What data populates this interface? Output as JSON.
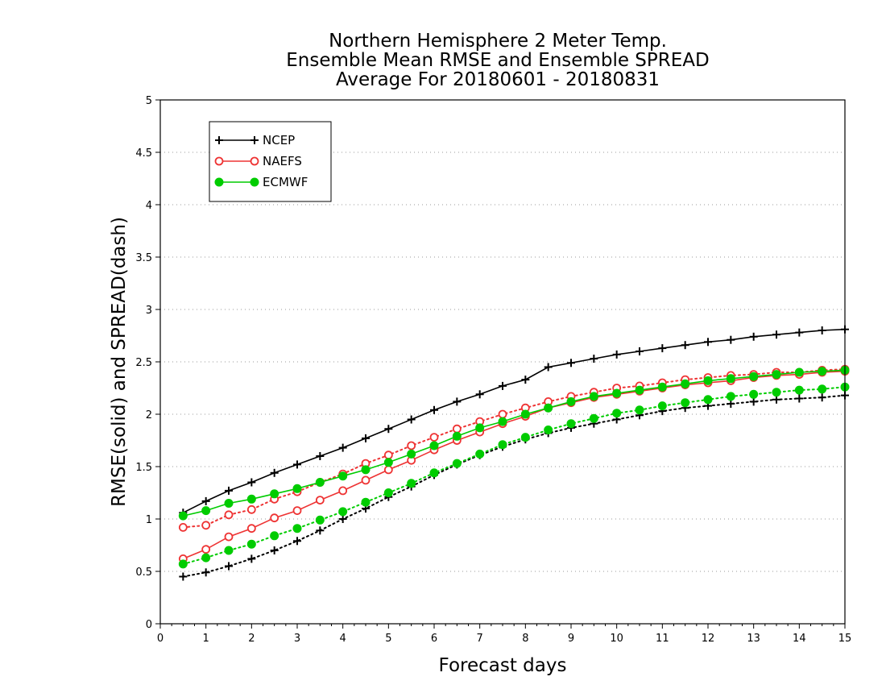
{
  "chart_data": {
    "type": "line",
    "title": [
      "Northern Hemisphere 2 Meter Temp.",
      "Ensemble Mean RMSE and Ensemble SPREAD",
      "Average For 20180601 - 20180831"
    ],
    "xlabel": "Forecast days",
    "ylabel": "RMSE(solid) and SPREAD(dash)",
    "xlim": [
      0,
      15
    ],
    "ylim": [
      0,
      5
    ],
    "xticks": [
      "0",
      "1",
      "2",
      "3",
      "4",
      "5",
      "6",
      "7",
      "8",
      "9",
      "10",
      "11",
      "12",
      "13",
      "14",
      "15"
    ],
    "yticks": [
      "0",
      "0.5",
      "1",
      "1.5",
      "2",
      "2.5",
      "3",
      "3.5",
      "4",
      "4.5",
      "5"
    ],
    "grid": "horizontal-dotted",
    "legend_position": "top-left",
    "x": [
      0.5,
      1,
      1.5,
      2,
      2.5,
      3,
      3.5,
      4,
      4.5,
      5,
      5.5,
      6,
      6.5,
      7,
      7.5,
      8,
      8.5,
      9,
      9.5,
      10,
      10.5,
      11,
      11.5,
      12,
      12.5,
      13,
      13.5,
      14,
      14.5,
      15
    ],
    "series": [
      {
        "name": "NCEP",
        "style": "solid",
        "color": "#000000",
        "marker": "plus",
        "values": [
          1.06,
          1.17,
          1.27,
          1.35,
          1.44,
          1.52,
          1.6,
          1.68,
          1.77,
          1.86,
          1.95,
          2.04,
          2.12,
          2.19,
          2.27,
          2.33,
          2.45,
          2.49,
          2.53,
          2.57,
          2.6,
          2.63,
          2.66,
          2.69,
          2.71,
          2.74,
          2.76,
          2.78,
          2.8,
          2.81
        ]
      },
      {
        "name": "NAEFS",
        "style": "solid",
        "color": "#ee3333",
        "marker": "open-circle",
        "values": [
          0.62,
          0.71,
          0.83,
          0.91,
          1.01,
          1.08,
          1.18,
          1.27,
          1.37,
          1.47,
          1.56,
          1.66,
          1.75,
          1.83,
          1.91,
          1.98,
          2.06,
          2.11,
          2.16,
          2.19,
          2.22,
          2.25,
          2.28,
          2.3,
          2.32,
          2.35,
          2.37,
          2.38,
          2.4,
          2.41
        ]
      },
      {
        "name": "ECMWF",
        "style": "solid",
        "color": "#00cc00",
        "marker": "filled-circle",
        "values": [
          1.03,
          1.08,
          1.15,
          1.19,
          1.24,
          1.29,
          1.35,
          1.41,
          1.47,
          1.54,
          1.62,
          1.7,
          1.79,
          1.87,
          1.93,
          2.0,
          2.06,
          2.12,
          2.17,
          2.2,
          2.23,
          2.26,
          2.29,
          2.32,
          2.34,
          2.36,
          2.38,
          2.4,
          2.41,
          2.42
        ]
      },
      {
        "name": "NCEP",
        "style": "dash",
        "color": "#000000",
        "marker": "plus",
        "values": [
          0.45,
          0.49,
          0.55,
          0.62,
          0.7,
          0.79,
          0.89,
          1.0,
          1.1,
          1.21,
          1.31,
          1.42,
          1.52,
          1.61,
          1.69,
          1.76,
          1.82,
          1.87,
          1.91,
          1.95,
          1.99,
          2.03,
          2.06,
          2.08,
          2.1,
          2.12,
          2.14,
          2.15,
          2.16,
          2.18
        ]
      },
      {
        "name": "NAEFS",
        "style": "dash",
        "color": "#ee3333",
        "marker": "open-circle",
        "values": [
          0.92,
          0.94,
          1.04,
          1.09,
          1.19,
          1.26,
          1.35,
          1.43,
          1.53,
          1.61,
          1.7,
          1.78,
          1.86,
          1.93,
          2.0,
          2.06,
          2.12,
          2.17,
          2.21,
          2.25,
          2.27,
          2.3,
          2.33,
          2.35,
          2.37,
          2.38,
          2.4,
          2.4,
          2.42,
          2.43
        ]
      },
      {
        "name": "ECMWF",
        "style": "dash",
        "color": "#00cc00",
        "marker": "filled-circle",
        "values": [
          0.57,
          0.63,
          0.7,
          0.76,
          0.84,
          0.91,
          0.99,
          1.07,
          1.16,
          1.25,
          1.34,
          1.44,
          1.53,
          1.62,
          1.71,
          1.78,
          1.85,
          1.91,
          1.96,
          2.01,
          2.04,
          2.08,
          2.11,
          2.14,
          2.17,
          2.19,
          2.21,
          2.23,
          2.24,
          2.26
        ]
      }
    ]
  }
}
